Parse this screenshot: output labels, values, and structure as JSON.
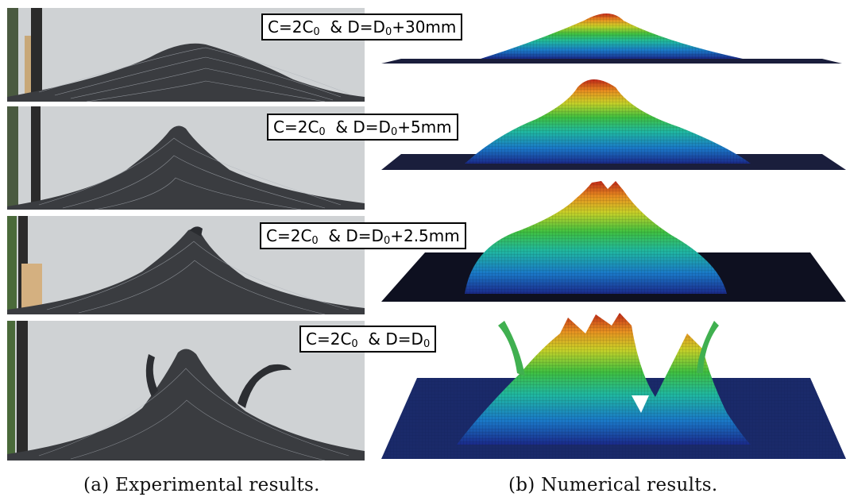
{
  "figure": {
    "rows": [
      {
        "c": "C=2C",
        "c_sub": "0",
        "d": "D=D",
        "d_sub": "0",
        "d_suffix": "+30mm"
      },
      {
        "c": "C=2C",
        "c_sub": "0",
        "d": "D=D",
        "d_sub": "0",
        "d_suffix": "+5mm"
      },
      {
        "c": "C=2C",
        "c_sub": "0",
        "d": "D=D",
        "d_sub": "0",
        "d_suffix": "+2.5mm"
      },
      {
        "c": "C=2C",
        "c_sub": "0",
        "d": "D=D",
        "d_sub": "0",
        "d_suffix": ""
      }
    ],
    "captions": {
      "experimental": "(a) Experimental results.",
      "numerical": "(b) Numerical results."
    },
    "colors": {
      "photo_background": "#cfd2d4",
      "sheet": "#3a3c40",
      "grid": "#c8ccd2",
      "base_plate": "#1a1e3c",
      "colormap": [
        "#1a2a8a",
        "#1a78c8",
        "#20b8a0",
        "#40c040",
        "#c8d028",
        "#e89020",
        "#c02818"
      ]
    }
  }
}
